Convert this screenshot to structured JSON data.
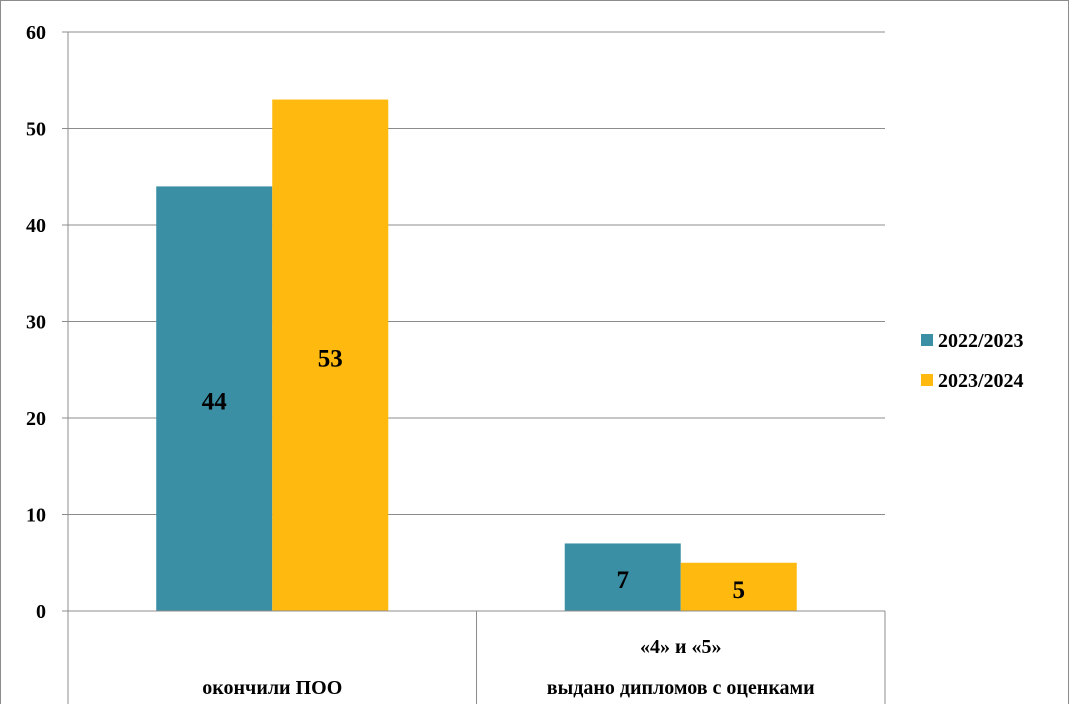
{
  "chart_data": {
    "type": "bar",
    "categories": [
      {
        "lines": [
          "окончили ПОО"
        ]
      },
      {
        "lines": [
          "«4» и «5»",
          "выдано дипломов с оценками"
        ]
      }
    ],
    "series": [
      {
        "name": "2022/2023",
        "color": "#3a8fa4",
        "values": [
          44,
          7
        ]
      },
      {
        "name": "2023/2024",
        "color": "#ffb90f",
        "values": [
          53,
          5
        ]
      }
    ],
    "ylim": [
      0,
      60
    ],
    "yticks": [
      0,
      10,
      20,
      30,
      40,
      50,
      60
    ],
    "grid": true,
    "legend_position": "right",
    "data_labels": true
  }
}
